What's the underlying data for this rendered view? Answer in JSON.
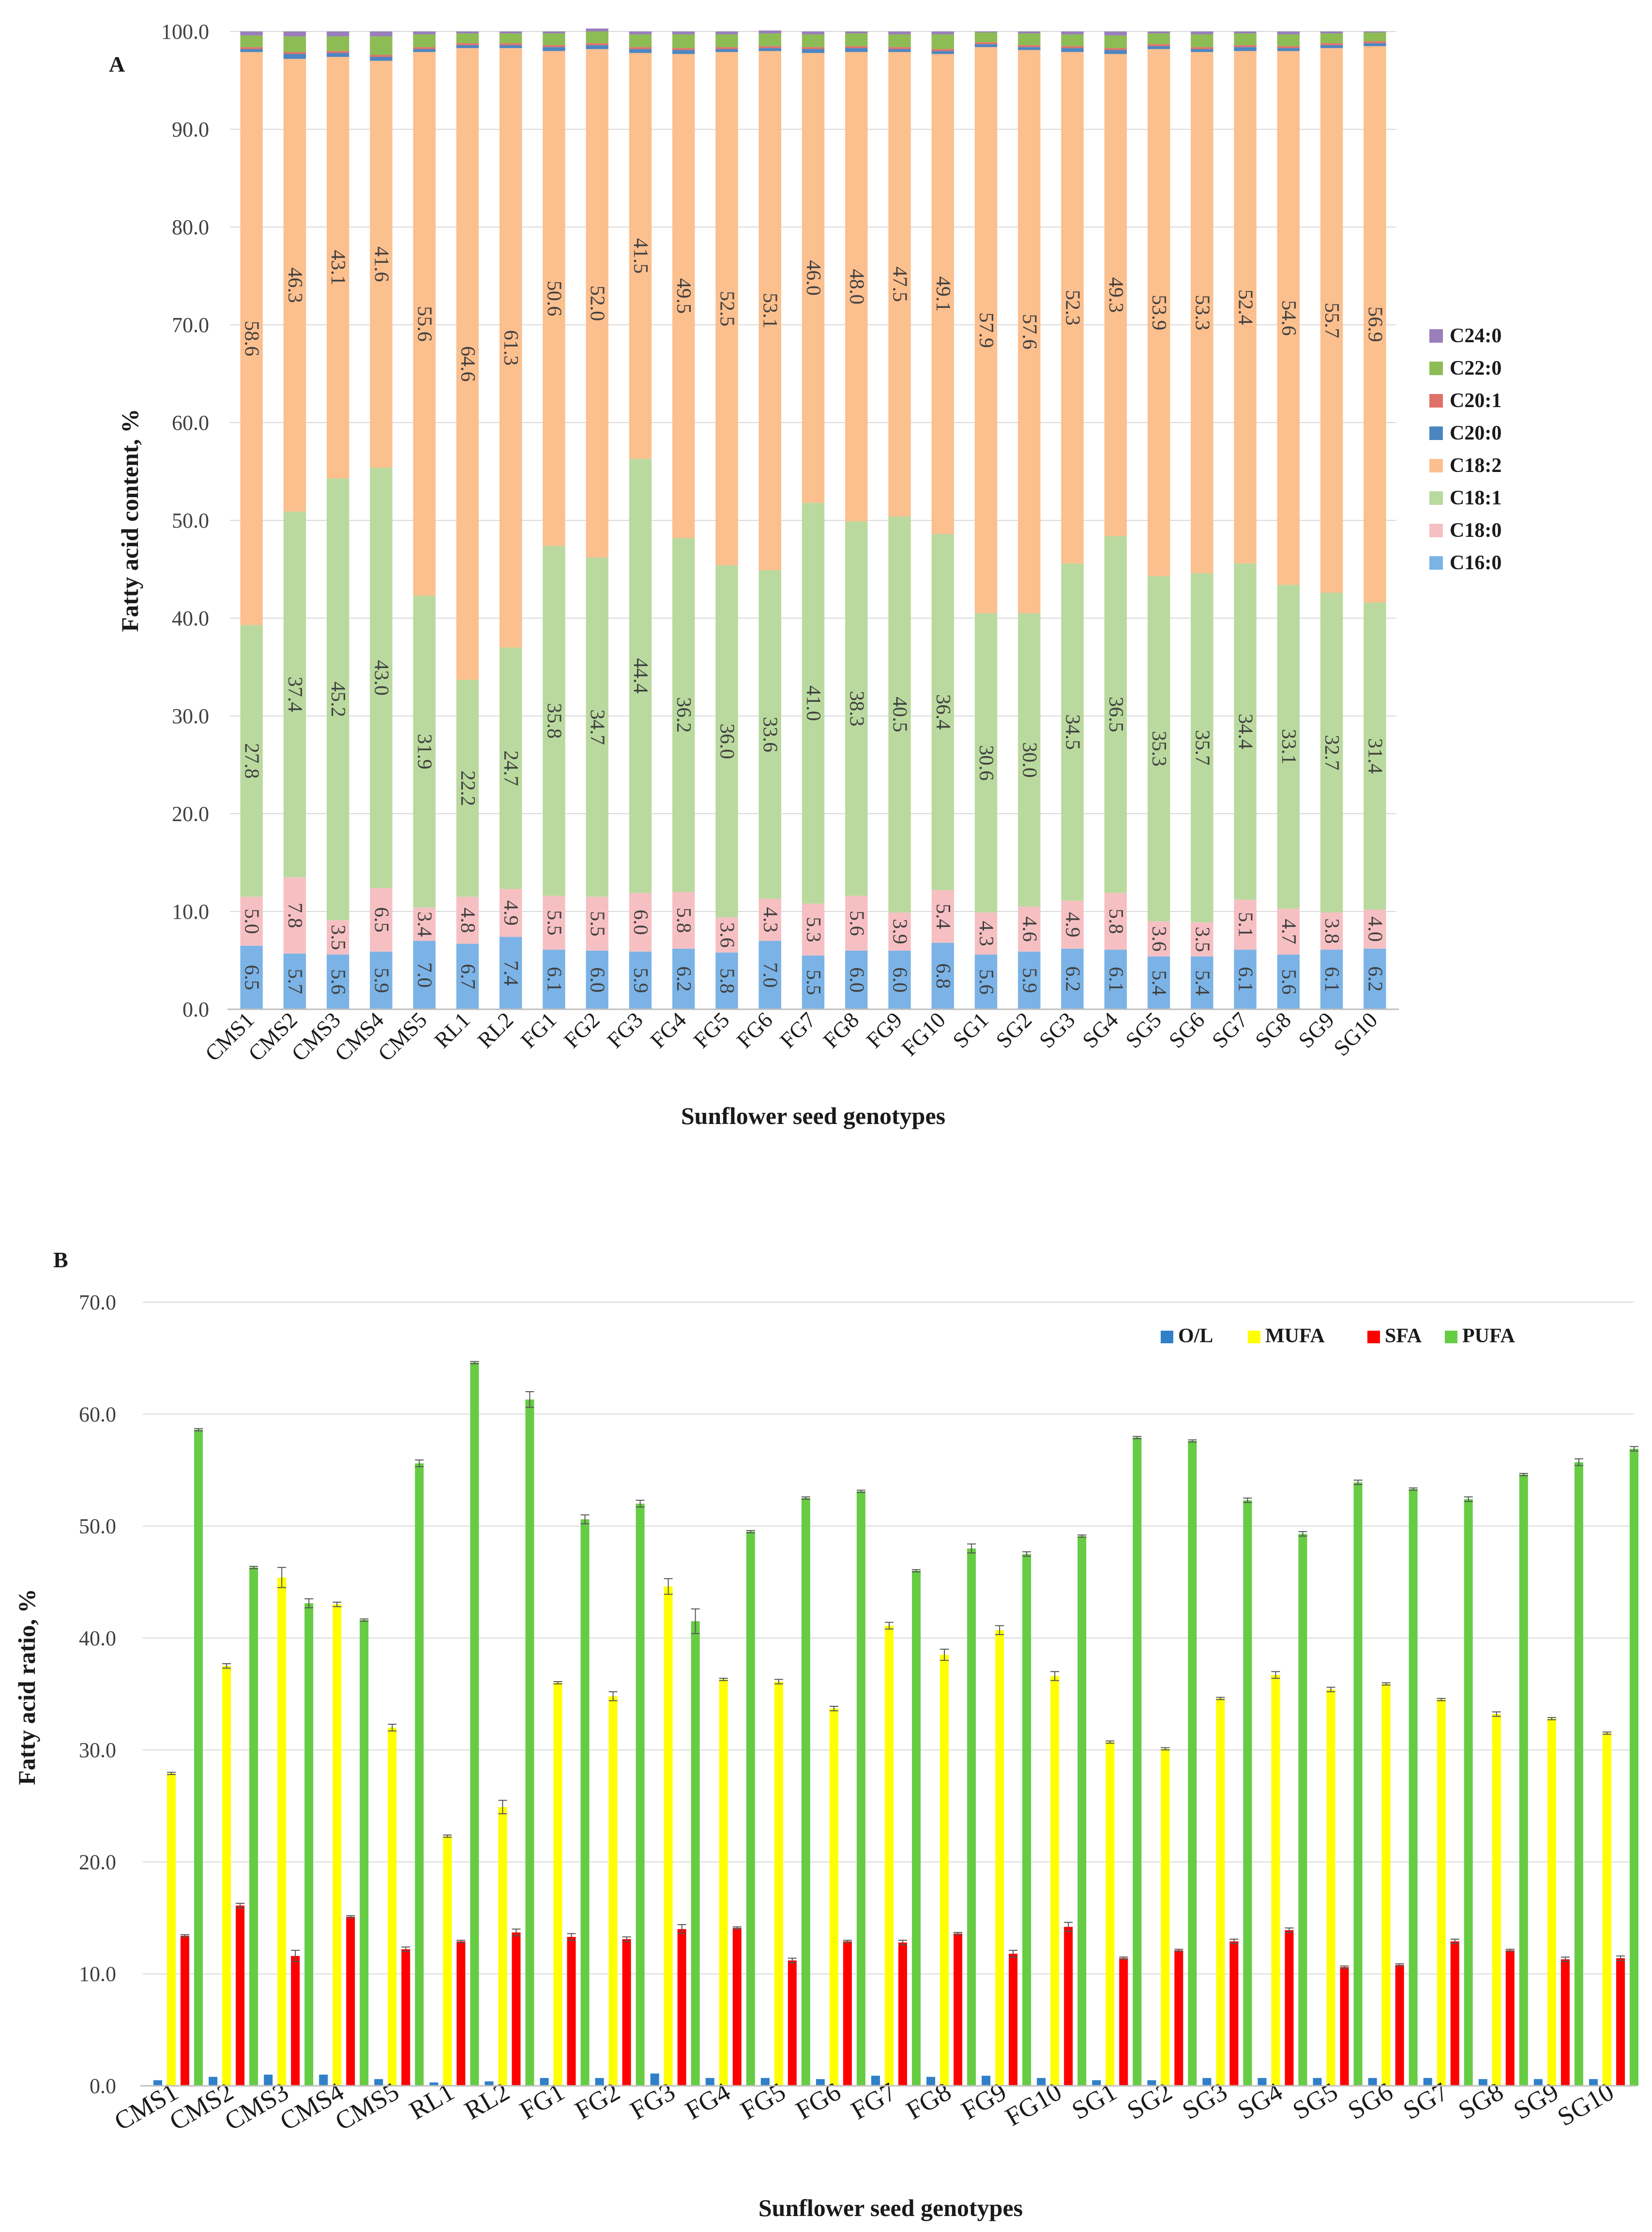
{
  "chart_data": [
    {
      "type": "bar",
      "stacked": true,
      "panel": "A",
      "categories": [
        "CMS1",
        "CMS2",
        "CMS3",
        "CMS4",
        "CMS5",
        "RL1",
        "RL2",
        "FG1",
        "FG2",
        "FG3",
        "FG4",
        "FG5",
        "FG6",
        "FG7",
        "FG8",
        "FG9",
        "FG10",
        "SG1",
        "SG2",
        "SG3",
        "SG4",
        "SG5",
        "SG6",
        "SG7",
        "SG8",
        "SG9",
        "SG10"
      ],
      "series": [
        {
          "name": "C16:0",
          "color": "#7bb3e6",
          "values": [
            6.5,
            5.7,
            5.6,
            5.9,
            7.0,
            6.7,
            7.4,
            6.1,
            6.0,
            5.9,
            6.2,
            5.8,
            7.0,
            5.5,
            6.0,
            6.0,
            6.8,
            5.6,
            5.9,
            6.2,
            6.1,
            5.4,
            5.4,
            6.1,
            5.6,
            6.1,
            6.2
          ]
        },
        {
          "name": "C18:0",
          "color": "#f6c0c3",
          "values": [
            5.0,
            7.8,
            3.5,
            6.5,
            3.4,
            4.8,
            4.9,
            5.5,
            5.5,
            6.0,
            5.8,
            3.6,
            4.3,
            5.3,
            5.6,
            3.9,
            5.4,
            4.3,
            4.6,
            4.9,
            5.8,
            3.6,
            3.5,
            5.1,
            4.7,
            3.8,
            4.0
          ]
        },
        {
          "name": "C18:1",
          "color": "#bad99e",
          "values": [
            27.8,
            37.4,
            45.2,
            43.0,
            31.9,
            22.2,
            24.7,
            35.8,
            34.7,
            44.4,
            36.2,
            36.0,
            33.6,
            41.0,
            38.3,
            40.5,
            36.4,
            30.6,
            30.0,
            34.5,
            36.5,
            35.3,
            35.7,
            34.4,
            33.1,
            32.7,
            31.4
          ]
        },
        {
          "name": "C18:2",
          "color": "#fcbf8e",
          "values": [
            58.6,
            46.3,
            43.1,
            41.6,
            55.6,
            64.6,
            61.3,
            50.6,
            52.0,
            41.5,
            49.5,
            52.5,
            53.1,
            46.0,
            48.0,
            47.5,
            49.1,
            57.9,
            57.6,
            52.3,
            49.3,
            53.9,
            53.3,
            52.4,
            54.6,
            55.7,
            56.9
          ]
        },
        {
          "name": "C20:0",
          "color": "#4b86c2",
          "values": [
            0.3,
            0.5,
            0.4,
            0.4,
            0.3,
            0.3,
            0.3,
            0.4,
            0.4,
            0.4,
            0.4,
            0.3,
            0.3,
            0.4,
            0.4,
            0.3,
            0.3,
            0.3,
            0.3,
            0.4,
            0.4,
            0.3,
            0.3,
            0.4,
            0.3,
            0.3,
            0.3
          ]
        },
        {
          "name": "C20:1",
          "color": "#e07169",
          "values": [
            0.2,
            0.2,
            0.2,
            0.2,
            0.2,
            0.2,
            0.2,
            0.2,
            0.2,
            0.2,
            0.2,
            0.2,
            0.2,
            0.2,
            0.2,
            0.2,
            0.2,
            0.2,
            0.2,
            0.2,
            0.2,
            0.2,
            0.2,
            0.2,
            0.2,
            0.2,
            0.2
          ]
        },
        {
          "name": "C22:0",
          "color": "#8dbc55",
          "values": [
            1.2,
            1.6,
            1.5,
            1.9,
            1.3,
            1.0,
            1.0,
            1.2,
            1.2,
            1.3,
            1.4,
            1.3,
            1.3,
            1.3,
            1.3,
            1.3,
            1.5,
            1.0,
            1.2,
            1.2,
            1.3,
            1.1,
            1.3,
            1.2,
            1.2,
            1.0,
            0.9
          ]
        },
        {
          "name": "C24:0",
          "color": "#9a7fbc",
          "values": [
            0.4,
            0.5,
            0.5,
            0.5,
            0.3,
            0.2,
            0.2,
            0.2,
            0.3,
            0.3,
            0.3,
            0.3,
            0.3,
            0.3,
            0.2,
            0.3,
            0.3,
            0.1,
            0.2,
            0.3,
            0.4,
            0.2,
            0.3,
            0.2,
            0.3,
            0.2,
            0.1
          ]
        }
      ],
      "labeled_series": [
        "C16:0",
        "C18:0",
        "C18:1",
        "C18:2"
      ],
      "ylabel": "Fatty acid content, %",
      "xlabel": "Sunflower seed genotypes",
      "ylim": [
        0,
        100
      ],
      "yticks": [
        "0.0",
        "10.0",
        "20.0",
        "30.0",
        "40.0",
        "50.0",
        "60.0",
        "70.0",
        "80.0",
        "90.0",
        "100.0"
      ],
      "legend_placement": "right",
      "grid": true
    },
    {
      "type": "bar",
      "stacked": false,
      "panel": "B",
      "categories": [
        "CMS1",
        "CMS2",
        "CMS3",
        "CMS4",
        "CMS5",
        "RL1",
        "RL2",
        "FG1",
        "FG2",
        "FG3",
        "FG4",
        "FG5",
        "FG6",
        "FG7",
        "FG8",
        "FG9",
        "FG10",
        "SG1",
        "SG2",
        "SG3",
        "SG4",
        "SG5",
        "SG6",
        "SG7",
        "SG8",
        "SG9",
        "SG10"
      ],
      "series": [
        {
          "name": "O/L",
          "color": "#2f80c9",
          "values": [
            0.5,
            0.8,
            1.0,
            1.0,
            0.6,
            0.3,
            0.4,
            0.7,
            0.7,
            1.1,
            0.7,
            0.7,
            0.6,
            0.9,
            0.8,
            0.9,
            0.7,
            0.5,
            0.5,
            0.7,
            0.7,
            0.7,
            0.7,
            0.7,
            0.6,
            0.6,
            0.6
          ],
          "errors": [
            0,
            0,
            0,
            0,
            0,
            0,
            0,
            0,
            0,
            0,
            0,
            0,
            0,
            0,
            0,
            0,
            0,
            0,
            0,
            0,
            0,
            0,
            0,
            0,
            0,
            0,
            0
          ]
        },
        {
          "name": "MUFA",
          "color": "#ffff00",
          "values": [
            27.9,
            37.5,
            45.4,
            43.0,
            32.0,
            22.3,
            24.9,
            36.0,
            34.8,
            44.6,
            36.3,
            36.1,
            33.7,
            41.1,
            38.5,
            40.7,
            36.6,
            30.7,
            30.1,
            34.6,
            36.7,
            35.4,
            35.9,
            34.5,
            33.2,
            32.8,
            31.5
          ],
          "errors": [
            0.1,
            0.2,
            0.9,
            0.2,
            0.3,
            0.1,
            0.6,
            0.1,
            0.4,
            0.7,
            0.1,
            0.2,
            0.2,
            0.3,
            0.5,
            0.4,
            0.4,
            0.1,
            0.1,
            0.1,
            0.3,
            0.2,
            0.1,
            0.1,
            0.2,
            0.1,
            0.1
          ]
        },
        {
          "name": "SFA",
          "color": "#ff0000",
          "values": [
            13.4,
            16.1,
            11.6,
            15.1,
            12.2,
            12.9,
            13.7,
            13.3,
            13.1,
            14.0,
            14.1,
            11.2,
            12.9,
            12.8,
            13.6,
            11.8,
            14.2,
            11.4,
            12.1,
            12.9,
            13.9,
            10.6,
            10.8,
            12.9,
            12.1,
            11.3,
            11.4
          ],
          "errors": [
            0.1,
            0.2,
            0.5,
            0.1,
            0.2,
            0.1,
            0.3,
            0.3,
            0.2,
            0.4,
            0.1,
            0.2,
            0.1,
            0.2,
            0.1,
            0.3,
            0.4,
            0.1,
            0.1,
            0.2,
            0.2,
            0.1,
            0.1,
            0.2,
            0.1,
            0.2,
            0.2
          ]
        },
        {
          "name": "PUFA",
          "color": "#66cc44",
          "values": [
            58.6,
            46.3,
            43.1,
            41.6,
            55.6,
            64.6,
            61.3,
            50.6,
            52.0,
            41.5,
            49.5,
            52.5,
            53.1,
            46.0,
            48.0,
            47.5,
            49.1,
            57.9,
            57.6,
            52.3,
            49.3,
            53.9,
            53.3,
            52.4,
            54.6,
            55.7,
            56.9
          ],
          "errors": [
            0.1,
            0.1,
            0.4,
            0.1,
            0.3,
            0.1,
            0.7,
            0.4,
            0.3,
            1.1,
            0.1,
            0.1,
            0.1,
            0.1,
            0.4,
            0.2,
            0.1,
            0.1,
            0.1,
            0.2,
            0.2,
            0.2,
            0.1,
            0.2,
            0.1,
            0.3,
            0.2
          ]
        }
      ],
      "ylabel": "Fatty acid ratio, %",
      "xlabel": "Sunflower seed genotypes",
      "ylim": [
        0,
        70
      ],
      "yticks": [
        "0.0",
        "10.0",
        "20.0",
        "30.0",
        "40.0",
        "50.0",
        "60.0",
        "70.0"
      ],
      "legend_placement": "top-right",
      "grid": true
    }
  ]
}
